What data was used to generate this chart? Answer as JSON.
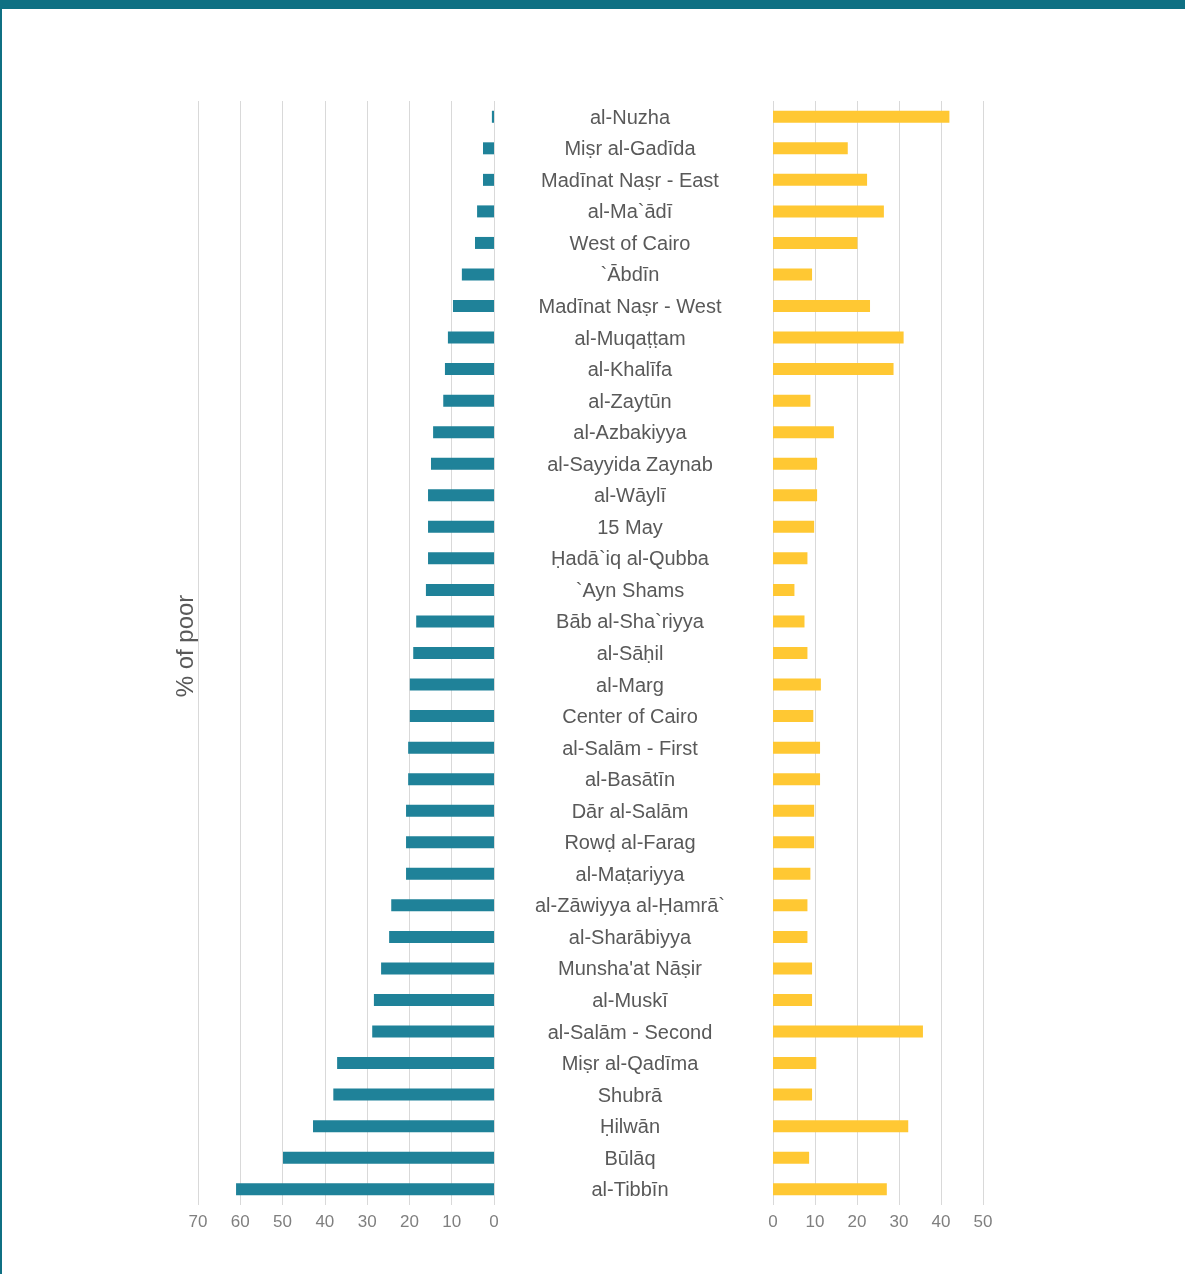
{
  "chart_data": [
    {
      "type": "bar",
      "orientation": "horizontal",
      "ylabel": "% of poor",
      "categories": [
        "al-Nuzha",
        "Miṣr al-Gadīda",
        "Madīnat Naṣr - East",
        "al-Ma`ādī",
        "West of Cairo",
        "`Ābdīn",
        "Madīnat Naṣr - West",
        "al-Muqaṭṭam",
        "al-Khalīfa",
        "al-Zaytūn",
        "al-Azbakiyya",
        "al-Sayyida Zaynab",
        "al-Wāylī",
        "15 May",
        "Ḥadā`iq al-Qubba",
        "`Ayn Shams",
        "Bāb al-Sha`riyya",
        "al-Sāḥil",
        "al-Marg",
        "Center of Cairo",
        "al-Salām - First",
        "al-Basātīn",
        "Dār al-Salām",
        "Rowḍ al-Farag",
        "al-Maṭariyya",
        "al-Zāwiyya al-Ḥamrā`",
        "al-Sharābiyya",
        "Munsha'at Nāṣir",
        "al-Muskī",
        "al-Salām - Second",
        "Miṣr al-Qadīma",
        "Shubrā",
        "Ḥilwān",
        "Būlāq",
        "al-Tibbīn"
      ],
      "values": [
        0.5,
        2.6,
        2.6,
        4,
        4.5,
        7.6,
        9.7,
        10.9,
        11.6,
        12,
        14.4,
        14.9,
        15.6,
        15.6,
        15.6,
        16.1,
        18.4,
        19.1,
        19.9,
        19.9,
        20.3,
        20.3,
        20.8,
        20.8,
        20.8,
        24.3,
        24.8,
        26.7,
        28.4,
        28.8,
        37.1,
        38,
        42.8,
        49.9,
        61
      ],
      "color": "#1f8299",
      "xlim": [
        70,
        0
      ],
      "xticks": [
        70,
        60,
        50,
        40,
        30,
        20,
        10,
        0
      ],
      "grid": "x"
    },
    {
      "type": "bar",
      "orientation": "horizontal",
      "categories": [
        null,
        null,
        null,
        null,
        null,
        null,
        null,
        null,
        null,
        null,
        null,
        null,
        null,
        null,
        null,
        null,
        null,
        null,
        null,
        null,
        null,
        null,
        null,
        null,
        null,
        null,
        null,
        null,
        null,
        null,
        null,
        null,
        null,
        null,
        null
      ],
      "values": [
        42,
        17.8,
        22.4,
        26.4,
        20.1,
        9.3,
        23.1,
        31.1,
        28.7,
        8.9,
        14.5,
        10.5,
        10.5,
        9.8,
        8.2,
        5.1,
        7.5,
        8.2,
        11.4,
        9.6,
        11.2,
        11.2,
        9.8,
        9.8,
        8.9,
        8.2,
        8.2,
        9.3,
        9.3,
        35.7,
        10.3,
        9.3,
        32.2,
        8.6,
        27.1
      ],
      "color": "#ffc833",
      "xlim": [
        0,
        50
      ],
      "xticks": [
        0,
        10,
        20,
        30,
        40,
        50
      ],
      "grid": "x",
      "tick_labels": "x"
    }
  ]
}
